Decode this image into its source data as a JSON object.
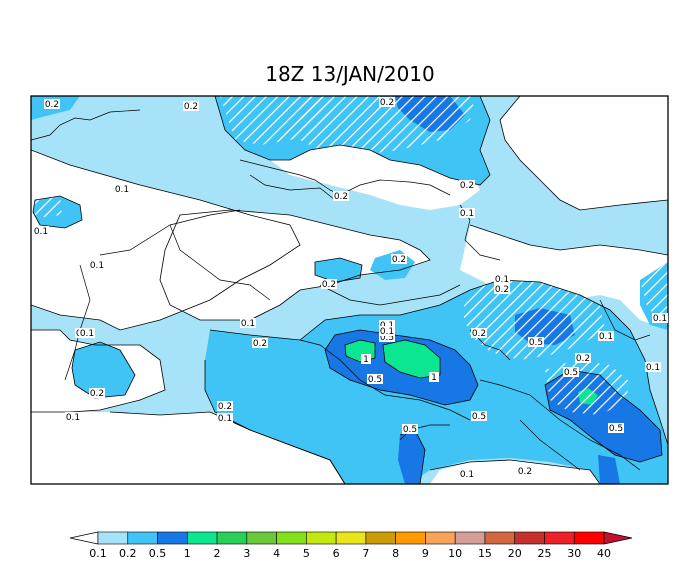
{
  "title": "18Z 13/JAN/2010",
  "colorbar": {
    "colors": [
      "#ffffff",
      "#a6e3f8",
      "#3fc4f5",
      "#1777e4",
      "#0be691",
      "#28d05a",
      "#6bc83b",
      "#82e21a",
      "#c3e80f",
      "#e8e61b",
      "#cc9c08",
      "#ff9b00",
      "#f7a45a",
      "#d49e98",
      "#d2683f",
      "#c5302f",
      "#ed2127",
      "#ff0000",
      "#ff0000"
    ],
    "labels": [
      "0.1",
      "0.2",
      "0.5",
      "1",
      "2",
      "3",
      "4",
      "5",
      "6",
      "7",
      "8",
      "9",
      "10",
      "15",
      "20",
      "25",
      "30",
      "40"
    ]
  },
  "contour_labels": {
    "c1": "0.2",
    "c2": "0.2",
    "c3": "0.2",
    "c4": "0.1",
    "c5": "0.2",
    "c6": "0.1",
    "c7": "0.1",
    "c8": "0.1",
    "c9": "0.2",
    "c10": "0.1",
    "c11": "0.2",
    "c12": "0.1",
    "c13": "0.2",
    "c14": "0.1",
    "c15": "0.2",
    "c16": "0.2",
    "c17": "0.1",
    "c18": "0.1",
    "c19": "0.2",
    "c20": "0.1",
    "c21": "0.5",
    "c22": "1",
    "c23": "1",
    "c24": "0.5",
    "c25": "0.5",
    "c26": "0.5",
    "c27": "0.2",
    "c28": "0.1",
    "c29": "0.2",
    "c30": "0.5",
    "c31": "0.5",
    "c32": "0.1",
    "c33": "0.2",
    "c34": "0.1",
    "c35": "0.1",
    "c36": "0.1",
    "c37": "0.2",
    "c38": "0.1",
    "c39": "0.5"
  }
}
